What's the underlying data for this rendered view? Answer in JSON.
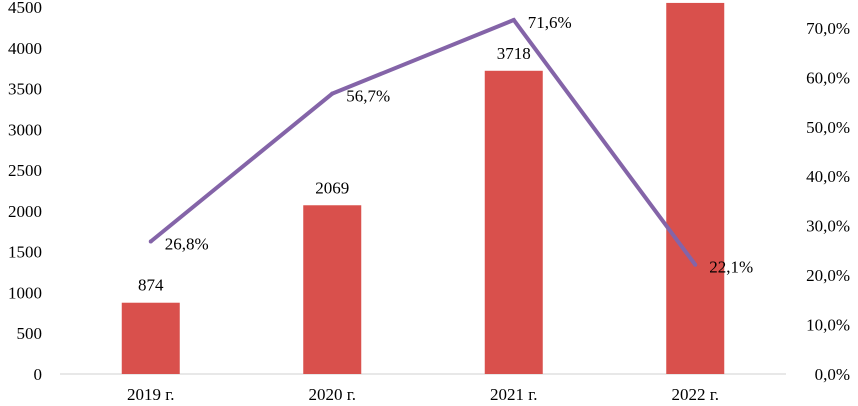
{
  "chart_data": {
    "type": "bar",
    "categories": [
      "2019 г.",
      "2020 г.",
      "2021 г.",
      "2022 г."
    ],
    "series": [
      {
        "kind": "bar",
        "axis": "left",
        "values": [
          874,
          2069,
          3718,
          4550
        ],
        "labels": [
          "874",
          "2069",
          "3718",
          ""
        ],
        "color": "#d9504c"
      },
      {
        "kind": "line",
        "axis": "right",
        "values": [
          26.8,
          56.7,
          71.6,
          22.1
        ],
        "labels": [
          "26,8%",
          "56,7%",
          "71,6%",
          "22,1%"
        ],
        "color": "#8464a8"
      }
    ],
    "y_left": {
      "ylim": [
        0,
        4500
      ],
      "ticks": [
        "0",
        "500",
        "1000",
        "1500",
        "2000",
        "2500",
        "3000",
        "3500",
        "4000",
        "4500"
      ]
    },
    "y_right": {
      "ylim": [
        0,
        72
      ],
      "ticks": [
        "0,0%",
        "10,0%",
        "20,0%",
        "30,0%",
        "40,0%",
        "50,0%",
        "60,0%",
        "70,0%"
      ]
    },
    "grid": false,
    "legend": "none"
  }
}
